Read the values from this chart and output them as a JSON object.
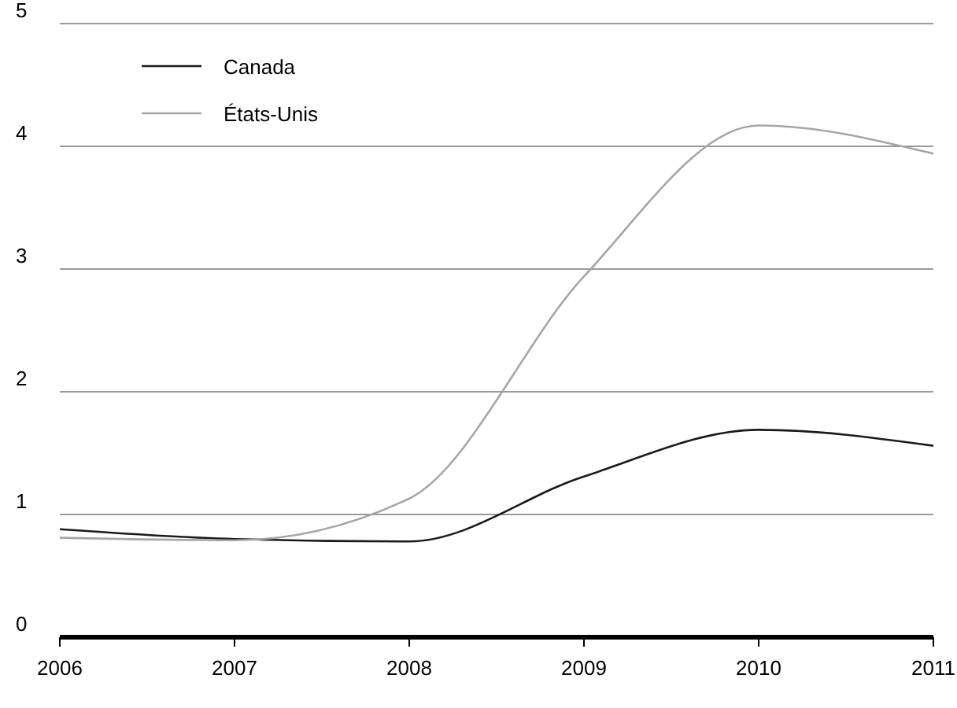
{
  "chart_data": {
    "type": "line",
    "x": [
      2006,
      2007,
      2008,
      2009,
      2010,
      2011
    ],
    "xlim": [
      2006,
      2011
    ],
    "xticks": [
      2006,
      2007,
      2008,
      2009,
      2010,
      2011
    ],
    "ylim": [
      0,
      5
    ],
    "yticks": [
      0,
      1,
      2,
      3,
      4,
      5
    ],
    "grid": "y",
    "legend": "top left",
    "series": [
      {
        "name": "Canada",
        "color": "#1a1a1a",
        "values": [
          0.88,
          0.8,
          0.78,
          1.31,
          1.69,
          1.56
        ]
      },
      {
        "name": "États-Unis",
        "color": "#a6a6a6",
        "values": [
          0.81,
          0.79,
          1.13,
          2.94,
          4.17,
          3.94
        ]
      }
    ]
  }
}
